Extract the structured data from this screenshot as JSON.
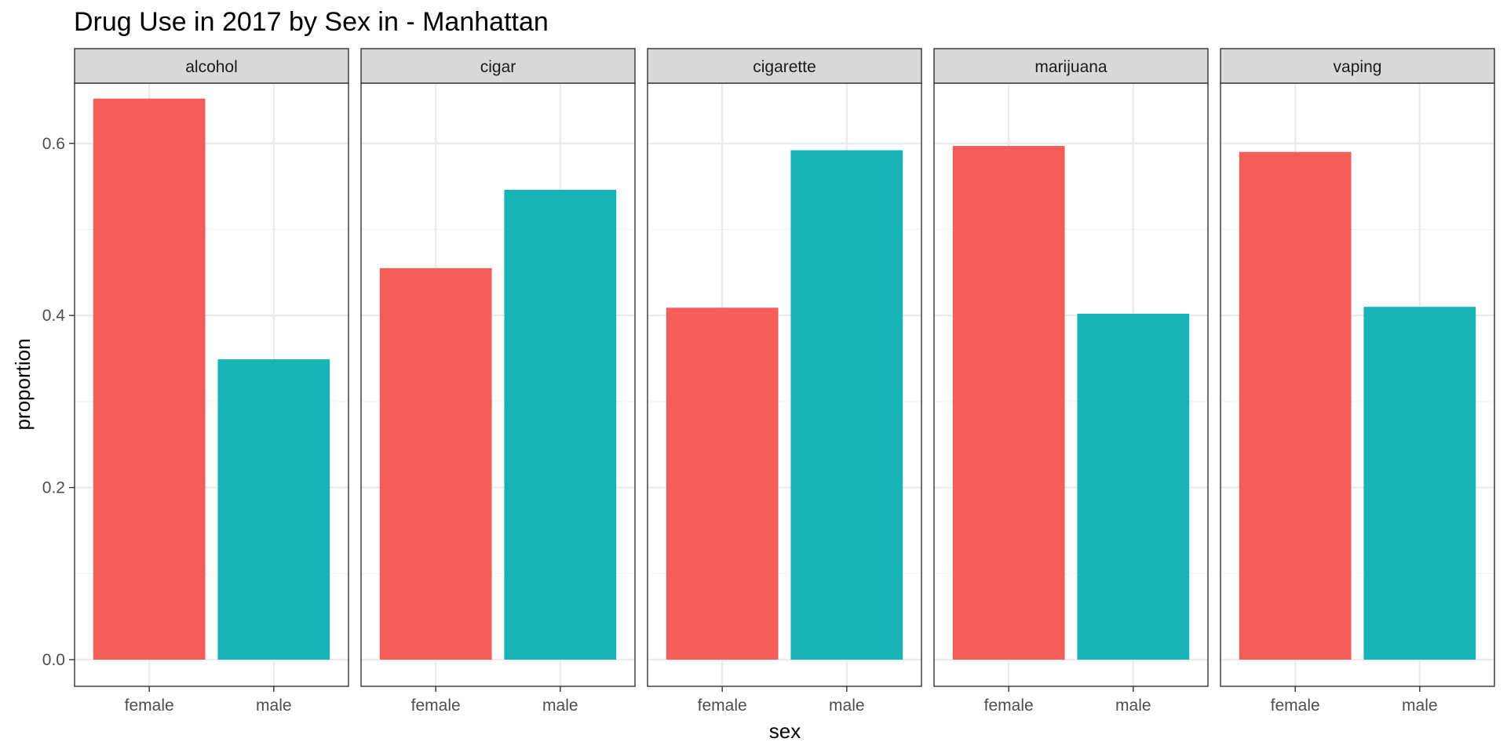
{
  "chart_data": {
    "type": "bar",
    "title": "Drug Use in 2017 by Sex in  - Manhattan",
    "xlabel": "sex",
    "ylabel": "proportion",
    "ylim": [
      0,
      0.68
    ],
    "yticks": [
      "0.0",
      "0.2",
      "0.4",
      "0.6"
    ],
    "ytick_values": [
      0,
      0.2,
      0.4,
      0.6
    ],
    "categories": [
      "female",
      "male"
    ],
    "grid": true,
    "legend": "none",
    "colors": {
      "female": "#F35E5A",
      "male": "#17B3B7"
    },
    "facets": [
      {
        "name": "alcohol",
        "values": [
          0.652,
          0.349
        ]
      },
      {
        "name": "cigar",
        "values": [
          0.455,
          0.546
        ]
      },
      {
        "name": "cigarette",
        "values": [
          0.409,
          0.592
        ]
      },
      {
        "name": "marijuana",
        "values": [
          0.597,
          0.402
        ]
      },
      {
        "name": "vaping",
        "values": [
          0.59,
          0.41
        ]
      }
    ]
  }
}
